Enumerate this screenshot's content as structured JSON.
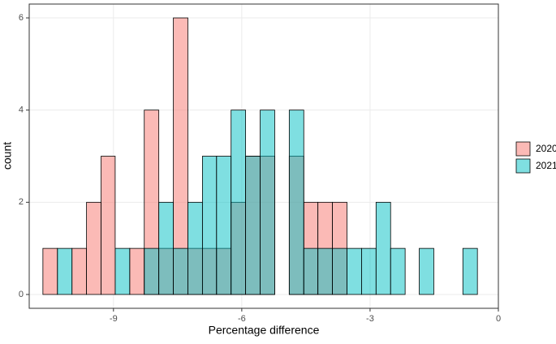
{
  "chart_data": {
    "type": "histogram",
    "x_label": "Percentage difference",
    "y_label": "count",
    "bins": [
      -10.65,
      -10.31,
      -9.97,
      -9.63,
      -9.29,
      -8.96,
      -8.62,
      -8.28,
      -7.94,
      -7.6,
      -7.26,
      -6.92,
      -6.59,
      -6.25,
      -5.91,
      -5.57,
      -5.23,
      -4.89,
      -4.55,
      -4.22,
      -3.88,
      -3.54,
      -3.2,
      -2.86,
      -2.52,
      -2.18,
      -1.85,
      -1.51,
      -1.17,
      -0.83,
      -0.49
    ],
    "series": [
      {
        "name": "2020",
        "color": "#F8766D",
        "values": [
          1,
          0,
          1,
          2,
          3,
          0,
          1,
          4,
          1,
          6,
          1,
          1,
          1,
          2,
          3,
          3,
          0,
          3,
          2,
          2,
          2,
          0,
          0,
          0,
          0,
          0,
          0,
          0,
          0,
          0
        ]
      },
      {
        "name": "2021",
        "color": "#00BFC4",
        "values": [
          0,
          1,
          0,
          0,
          0,
          1,
          0,
          1,
          2,
          1,
          2,
          3,
          3,
          4,
          3,
          4,
          0,
          4,
          1,
          1,
          1,
          1,
          1,
          2,
          1,
          0,
          1,
          0,
          0,
          1
        ]
      }
    ],
    "opacity": 0.5,
    "xlim": [
      -10.97,
      0
    ],
    "xticks": [
      -9,
      -6,
      -3,
      0
    ],
    "ylim": [
      -0.3,
      6.3
    ],
    "yticks": [
      0,
      2,
      4,
      6
    ],
    "grid": true,
    "legend": "right"
  }
}
